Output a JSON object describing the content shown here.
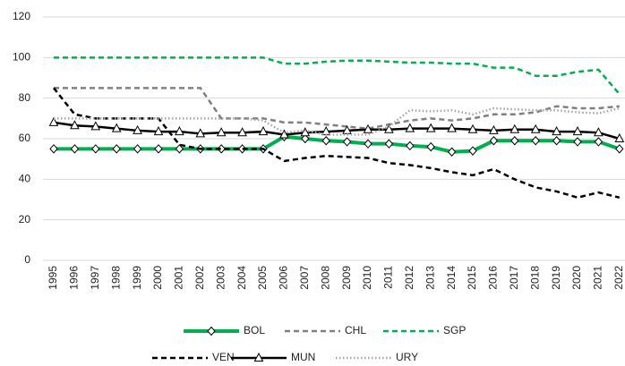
{
  "chart_data": {
    "type": "line",
    "categories": [
      "1995",
      "1996",
      "1997",
      "1998",
      "1999",
      "2000",
      "2001",
      "2002",
      "2003",
      "2004",
      "2005",
      "2006",
      "2007",
      "2008",
      "2009",
      "2010",
      "2011",
      "2012",
      "2013",
      "2014",
      "2015",
      "2016",
      "2017",
      "2018",
      "2019",
      "2020",
      "2021",
      "2022"
    ],
    "ylim": [
      0,
      120
    ],
    "yticks": [
      0,
      20,
      40,
      60,
      80,
      100,
      120
    ],
    "grid": true,
    "legend": "bottom",
    "series": [
      {
        "name": "BOL",
        "color": "#00b050",
        "style": "solid",
        "marker": "diamond",
        "values": [
          55,
          55,
          55,
          55,
          55,
          55,
          55,
          55,
          55,
          55,
          55,
          61,
          60,
          59,
          58.5,
          57.5,
          57.5,
          56.5,
          56,
          53.5,
          54,
          59,
          59,
          59,
          59,
          58.5,
          58.5,
          55
        ]
      },
      {
        "name": "CHL",
        "color": "#808080",
        "style": "dashed",
        "marker": "none",
        "values": [
          85,
          85,
          85,
          85,
          85,
          85,
          85,
          85,
          70,
          70,
          70,
          68,
          68,
          67,
          66,
          65,
          67,
          69,
          70,
          69,
          70,
          72,
          72,
          73,
          76,
          75,
          75,
          76
        ]
      },
      {
        "name": "SGP",
        "color": "#00b050",
        "style": "dashed",
        "marker": "none",
        "values": [
          100,
          100,
          100,
          100,
          100,
          100,
          100,
          100,
          100,
          100,
          100,
          97,
          97,
          98,
          98.5,
          98.5,
          98,
          97.5,
          97.5,
          97,
          97,
          95,
          95,
          91,
          91,
          93,
          94,
          82
        ]
      },
      {
        "name": "VEN",
        "color": "#000000",
        "style": "dashed",
        "marker": "none",
        "values": [
          85,
          72,
          70,
          70,
          70,
          70,
          57,
          55,
          55,
          55,
          55,
          49,
          50.5,
          51.5,
          51,
          50.5,
          48,
          47,
          45.5,
          43.5,
          42,
          45,
          40,
          36,
          34,
          31,
          33.5,
          31
        ]
      },
      {
        "name": "MUN",
        "color": "#000000",
        "style": "solid",
        "marker": "triangle",
        "values": [
          68,
          66.5,
          66,
          65,
          64,
          63.5,
          63.5,
          62.5,
          63,
          63,
          63.5,
          62,
          63,
          63.5,
          64,
          64.5,
          64.5,
          65,
          65,
          65,
          64.5,
          64,
          64.5,
          64.5,
          63.5,
          63.5,
          63,
          60
        ]
      },
      {
        "name": "URY",
        "color": "#a6a6a6",
        "style": "dotted",
        "marker": "none",
        "values": [
          70,
          70,
          70,
          70,
          70,
          70,
          70,
          70,
          70,
          70,
          69,
          63,
          64,
          62,
          62,
          62,
          66,
          74,
          73.5,
          74,
          72,
          75,
          74.5,
          74,
          74,
          73,
          72.5,
          75
        ]
      }
    ]
  }
}
